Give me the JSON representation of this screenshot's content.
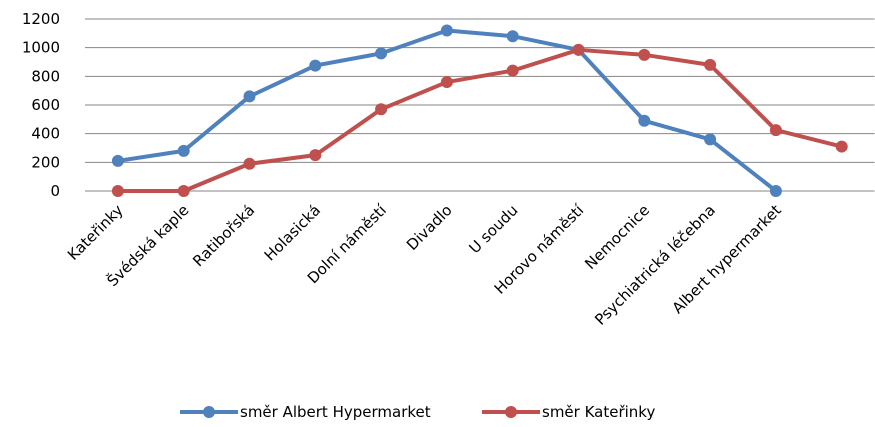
{
  "chart_data": {
    "type": "line",
    "categories": [
      "Kateřinky",
      "Švédská kaple",
      "Ratibořská",
      "Holasická",
      "Dolní náměstí",
      "Divadlo",
      "U soudu",
      "Horovo náměstí",
      "Nemocnice",
      "Psychiatrická léčebna",
      "Albert hypermarket",
      null
    ],
    "series": [
      {
        "name": "směr Albert Hypermarket",
        "color": "#4f81bd",
        "values": [
          210,
          280,
          660,
          875,
          960,
          1120,
          1080,
          985,
          490,
          360,
          0,
          null
        ]
      },
      {
        "name": "směr Kateřinky",
        "color": "#c0504d",
        "values": [
          0,
          0,
          190,
          250,
          570,
          760,
          840,
          985,
          950,
          880,
          425,
          310
        ]
      }
    ],
    "ylim": [
      0,
      1200
    ],
    "yticks": [
      0,
      200,
      400,
      600,
      800,
      1000,
      1200
    ],
    "grid": true,
    "legend": "bottom"
  }
}
